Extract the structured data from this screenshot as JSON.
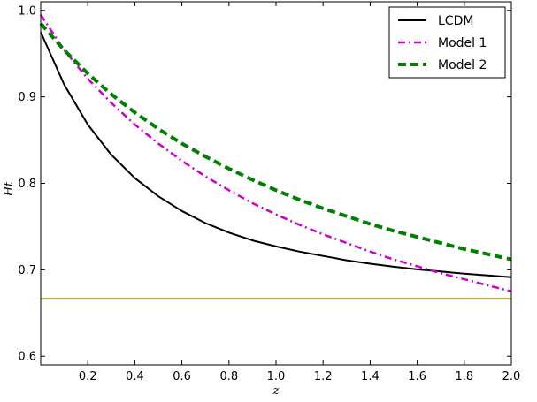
{
  "chart_data": {
    "type": "line",
    "title": "",
    "xlabel": "z",
    "ylabel": "Ht",
    "xlim": [
      0.0,
      2.0
    ],
    "ylim": [
      0.59,
      1.01
    ],
    "grid": false,
    "legend_placement": "top-right",
    "x_ticks": [
      0.2,
      0.4,
      0.6,
      0.8,
      1.0,
      1.2,
      1.4,
      1.6,
      1.8,
      2.0
    ],
    "x_tick_labels": [
      "0.2",
      "0.4",
      "0.6",
      "0.8",
      "1.0",
      "1.2",
      "1.4",
      "1.6",
      "1.8",
      "2.0"
    ],
    "y_ticks": [
      0.6,
      0.7,
      0.8,
      0.9,
      1.0
    ],
    "y_tick_labels": [
      "0.6",
      "0.7",
      "0.8",
      "0.9",
      "1.0"
    ],
    "x": [
      0.0,
      0.1,
      0.2,
      0.3,
      0.4,
      0.5,
      0.6,
      0.7,
      0.8,
      0.9,
      1.0,
      1.1,
      1.2,
      1.3,
      1.4,
      1.5,
      1.6,
      1.7,
      1.8,
      1.9,
      2.0
    ],
    "series": [
      {
        "name": "LCDM",
        "color": "#000000",
        "style": "solid",
        "values": [
          0.975,
          0.914,
          0.868,
          0.833,
          0.806,
          0.785,
          0.768,
          0.754,
          0.743,
          0.734,
          0.727,
          0.721,
          0.716,
          0.711,
          0.707,
          0.7035,
          0.7005,
          0.698,
          0.6955,
          0.6935,
          0.6915
        ]
      },
      {
        "name": "Model 1",
        "color": "#cc00cc",
        "style": "dashdot",
        "values": [
          0.995,
          0.954,
          0.921,
          0.893,
          0.868,
          0.846,
          0.826,
          0.808,
          0.792,
          0.777,
          0.764,
          0.752,
          0.741,
          0.731,
          0.721,
          0.712,
          0.704,
          0.696,
          0.689,
          0.682,
          0.675
        ]
      },
      {
        "name": "Model 2",
        "color": "#008000",
        "style": "dashed",
        "values": [
          0.985,
          0.954,
          0.927,
          0.903,
          0.882,
          0.863,
          0.846,
          0.831,
          0.817,
          0.804,
          0.792,
          0.781,
          0.771,
          0.762,
          0.753,
          0.745,
          0.738,
          0.731,
          0.724,
          0.718,
          0.712
        ]
      }
    ],
    "reference_line": {
      "y": 0.667,
      "color": "#bfbf00"
    }
  }
}
